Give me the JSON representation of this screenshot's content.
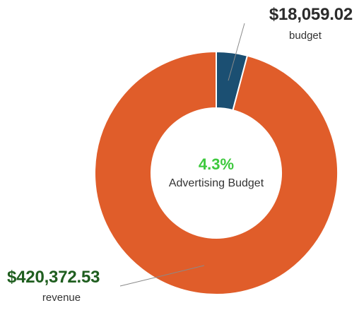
{
  "chart_data": {
    "type": "pie",
    "slices": [
      {
        "name": "budget",
        "value": 18059.02,
        "value_label": "$18,059.02",
        "label": "budget",
        "color": "#1b4f72",
        "label_color": "#2b2b2b"
      },
      {
        "name": "revenue",
        "value": 420372.53,
        "value_label": "$420,372.53",
        "label": "revenue",
        "color": "#e05d2a",
        "label_color": "#1f5e1f"
      }
    ],
    "center": {
      "percent": "4.3%",
      "caption": "Advertising Budget",
      "percent_color": "#3ec93e",
      "caption_color": "#333333"
    },
    "donut": true,
    "legend": "none"
  }
}
